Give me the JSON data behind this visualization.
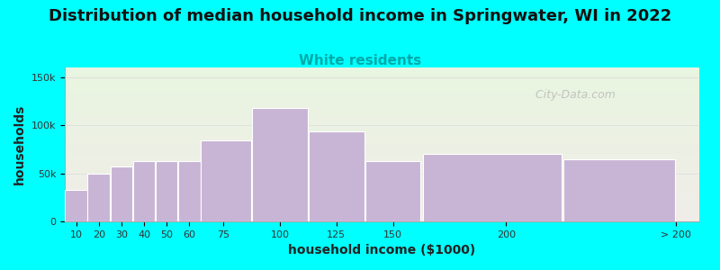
{
  "title": "Distribution of median household income in Springwater, WI in 2022",
  "subtitle": "White residents",
  "xlabel": "household income ($1000)",
  "ylabel": "households",
  "background_color": "#00FFFF",
  "plot_bg_gradient_top": "#e8f5e0",
  "plot_bg_gradient_bottom": "#f0ece8",
  "bar_color": "#c8b4d4",
  "bar_edge_color": "#ffffff",
  "bin_edges": [
    5,
    15,
    25,
    35,
    45,
    55,
    65,
    87.5,
    112.5,
    137.5,
    162.5,
    225,
    275
  ],
  "values": [
    33000,
    50000,
    57000,
    63000,
    63000,
    63000,
    84000,
    118000,
    94000,
    63000,
    70000,
    65000
  ],
  "tick_positions": [
    10,
    20,
    30,
    40,
    50,
    60,
    75,
    100,
    125,
    150,
    200,
    275
  ],
  "tick_labels": [
    "10",
    "20",
    "30",
    "40",
    "50",
    "60",
    "75",
    "100",
    "125",
    "150",
    "200",
    "> 200"
  ],
  "ylim": [
    0,
    160000
  ],
  "xlim": [
    5,
    285
  ],
  "yticks": [
    0,
    50000,
    100000,
    150000
  ],
  "ytick_labels": [
    "0",
    "50k",
    "100k",
    "150k"
  ],
  "title_fontsize": 13,
  "subtitle_fontsize": 11,
  "subtitle_color": "#00AAAA",
  "axis_label_fontsize": 10,
  "watermark_text": "  City-Data.com"
}
